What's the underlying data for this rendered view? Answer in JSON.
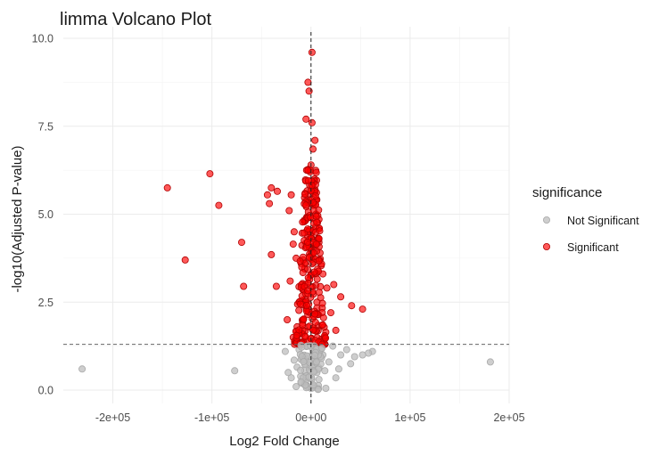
{
  "chart_data": {
    "type": "scatter",
    "title": "limma Volcano Plot",
    "xlabel": "Log2 Fold Change",
    "ylabel": "-log10(Adjusted P-value)",
    "xlim": [
      -250000,
      200000
    ],
    "ylim": [
      0,
      10
    ],
    "x_ticks": [
      -200000,
      -100000,
      0,
      100000,
      200000
    ],
    "x_tick_labels": [
      "-2e+05",
      "-1e+05",
      "0e+00",
      "1e+05",
      "2e+05"
    ],
    "y_ticks": [
      0,
      2.5,
      5,
      7.5,
      10
    ],
    "y_tick_labels": [
      "0.0",
      "2.5",
      "5.0",
      "7.5",
      "10.0"
    ],
    "grid": true,
    "significance_threshold_y": 1.3,
    "reference_x": 0,
    "legend": {
      "title": "significance",
      "placement": "right",
      "entries": [
        "Not Significant",
        "Significant"
      ]
    },
    "colors": {
      "Not Significant": "#bebebe",
      "Significant": "#ff0000"
    },
    "series": [
      {
        "name": "Not Significant",
        "points": [
          [
            -231000,
            0.6
          ],
          [
            -77000,
            0.55
          ],
          [
            181000,
            0.8
          ],
          [
            62000,
            1.1
          ],
          [
            58000,
            1.05
          ],
          [
            52000,
            1.0
          ],
          [
            44000,
            0.95
          ],
          [
            40000,
            0.75
          ],
          [
            36000,
            1.15
          ],
          [
            30000,
            1.0
          ],
          [
            28000,
            0.6
          ],
          [
            22000,
            1.25
          ],
          [
            18000,
            0.8
          ],
          [
            14000,
            0.55
          ],
          [
            10000,
            1.2
          ],
          [
            8000,
            0.3
          ],
          [
            5000,
            0.9
          ],
          [
            3000,
            0.1
          ],
          [
            1000,
            1.0
          ],
          [
            0,
            0.05
          ],
          [
            -1000,
            0.7
          ],
          [
            -3000,
            1.25
          ],
          [
            -5000,
            0.4
          ],
          [
            -8000,
            0.95
          ],
          [
            -10000,
            0.2
          ],
          [
            -12000,
            1.15
          ],
          [
            -14000,
            0.65
          ],
          [
            -17000,
            0.85
          ],
          [
            -20000,
            0.35
          ],
          [
            -23000,
            0.5
          ],
          [
            15000,
            0.05
          ],
          [
            -15000,
            0.1
          ],
          [
            6000,
            0.5
          ],
          [
            -6000,
            0.75
          ],
          [
            25000,
            0.35
          ],
          [
            -26000,
            1.1
          ],
          [
            12000,
            1.0
          ]
        ]
      },
      {
        "name": "Significant",
        "points": [
          [
            1000,
            9.6
          ],
          [
            -3000,
            8.75
          ],
          [
            -2000,
            8.5
          ],
          [
            -5000,
            7.7
          ],
          [
            1000,
            7.6
          ],
          [
            4000,
            7.1
          ],
          [
            2000,
            6.85
          ],
          [
            0,
            6.4
          ],
          [
            -1000,
            6.2
          ],
          [
            -145000,
            5.75
          ],
          [
            -102000,
            6.15
          ],
          [
            -93000,
            5.25
          ],
          [
            -70000,
            4.2
          ],
          [
            -127000,
            3.7
          ],
          [
            -40000,
            5.75
          ],
          [
            -34000,
            5.65
          ],
          [
            -44000,
            5.55
          ],
          [
            -20000,
            5.55
          ],
          [
            -42000,
            5.3
          ],
          [
            -22000,
            5.1
          ],
          [
            -17000,
            4.5
          ],
          [
            -40000,
            3.85
          ],
          [
            -68000,
            2.95
          ],
          [
            -35000,
            2.95
          ],
          [
            -15000,
            3.75
          ],
          [
            -18000,
            4.15
          ],
          [
            -10000,
            3.6
          ],
          [
            -8000,
            2.0
          ],
          [
            -21000,
            3.1
          ],
          [
            -12000,
            2.5
          ],
          [
            41000,
            2.4
          ],
          [
            52000,
            2.3
          ],
          [
            20000,
            2.2
          ],
          [
            16000,
            2.9
          ],
          [
            25000,
            1.7
          ],
          [
            -18000,
            1.5
          ],
          [
            12000,
            3.3
          ],
          [
            8000,
            4.2
          ],
          [
            5000,
            5.0
          ],
          [
            -14000,
            1.8
          ],
          [
            30000,
            2.65
          ],
          [
            23000,
            3.0
          ],
          [
            -24000,
            2.0
          ],
          [
            14000,
            1.5
          ],
          [
            -6000,
            3.0
          ],
          [
            6000,
            2.5
          ]
        ]
      }
    ]
  }
}
